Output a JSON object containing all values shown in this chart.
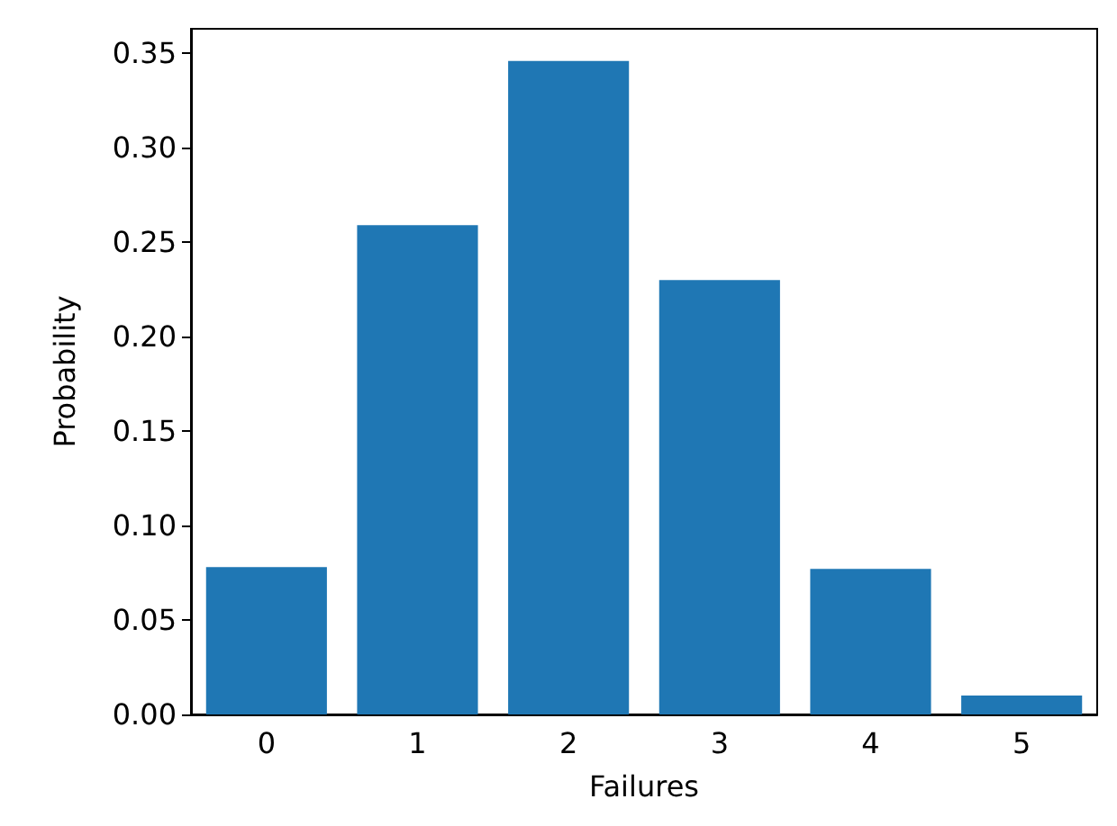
{
  "chart_data": {
    "type": "bar",
    "xlabel": "Failures",
    "ylabel": "Probability",
    "categories": [
      "0",
      "1",
      "2",
      "3",
      "4",
      "5"
    ],
    "values": [
      0.078,
      0.259,
      0.346,
      0.23,
      0.077,
      0.01
    ],
    "color": "#1f77b4",
    "ylim": [
      0,
      0.363
    ],
    "yticks": [
      {
        "value": 0,
        "label": "0.00"
      },
      {
        "value": 0.05,
        "label": "0.05"
      },
      {
        "value": 0.1,
        "label": "0.10"
      },
      {
        "value": 0.15,
        "label": "0.15"
      },
      {
        "value": 0.2,
        "label": "0.20"
      },
      {
        "value": 0.25,
        "label": "0.25"
      },
      {
        "value": 0.3,
        "label": "0.30"
      },
      {
        "value": 0.35,
        "label": "0.35"
      }
    ],
    "grid": false
  }
}
